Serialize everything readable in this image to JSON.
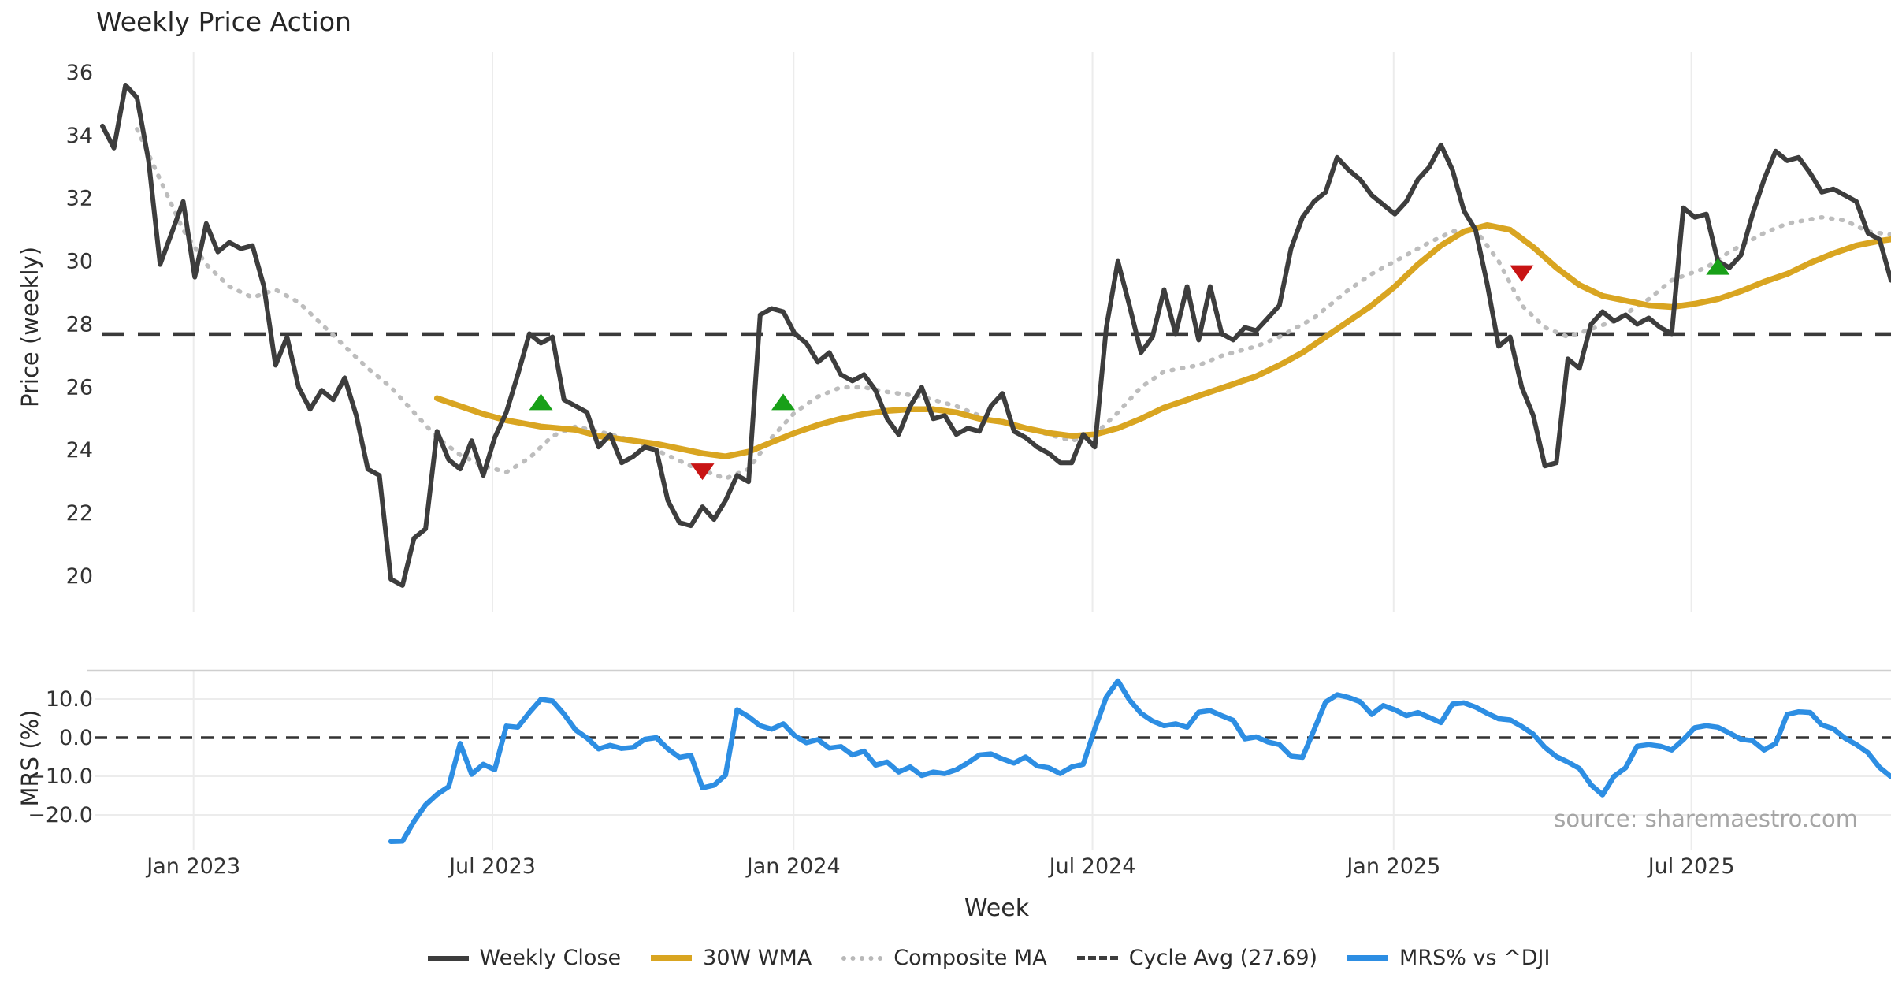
{
  "title": "Weekly Price Action",
  "source": "source: sharemaestro.com",
  "axes": {
    "price_label": "Price (weekly)",
    "mrs_label": "MRS (%)",
    "week_label": "Week",
    "price_ticks": [
      36,
      34,
      32,
      30,
      28,
      26,
      24,
      22,
      20
    ],
    "mrs_ticks": [
      {
        "label": "10.0",
        "value": 10
      },
      {
        "label": "0.0",
        "value": 0
      },
      {
        "label": "−10.0",
        "value": -10
      },
      {
        "label": "−20.0",
        "value": -20
      }
    ]
  },
  "legend": {
    "items": [
      {
        "label": "Weekly Close",
        "swatch": "sw-close",
        "name": "legend-weekly-close"
      },
      {
        "label": "30W WMA",
        "swatch": "sw-wma",
        "name": "legend-30w-wma"
      },
      {
        "label": "Composite MA",
        "swatch": "sw-dotted",
        "name": "legend-composite-ma"
      },
      {
        "label": "Cycle Avg (27.69)",
        "swatch": "sw-dashed",
        "name": "legend-cycle-avg"
      },
      {
        "label": "MRS% vs ^DJI",
        "swatch": "sw-mrs",
        "name": "legend-mrs"
      }
    ]
  },
  "colors": {
    "close": "#3d3d3d",
    "wma": "#d9a521",
    "composite": "#bdbdbd",
    "cycle": "#3a3a3a",
    "mrs": "#2d8ee3",
    "buy": "#18a018",
    "sell": "#c81414",
    "grid": "#ececec",
    "spine": "#cfcfcf",
    "tick_text": "#333333"
  },
  "chart_data": {
    "type": "line",
    "xlabel": "Week",
    "ylabel_top": "Price (weekly)",
    "ylabel_bottom": "MRS (%)",
    "ylim_top": [
      19.3,
      36.6
    ],
    "ylim_bottom": [
      -28,
      17.5
    ],
    "grid": true,
    "legend_position": "bottom",
    "x_ticks": [
      {
        "label": "Jan 2023",
        "week": 7.9
      },
      {
        "label": "Jul 2023",
        "week": 33.8
      },
      {
        "label": "Jan 2024",
        "week": 59.9
      },
      {
        "label": "Jul 2024",
        "week": 85.8
      },
      {
        "label": "Jan 2025",
        "week": 111.9
      },
      {
        "label": "Jul 2025",
        "week": 137.7
      }
    ],
    "cycle_avg": 27.69,
    "series": {
      "weekly_close": {
        "name": "Weekly Close",
        "start_week": 0,
        "values": [
          34.3,
          33.6,
          35.6,
          35.2,
          33.2,
          29.9,
          30.9,
          31.9,
          29.5,
          31.2,
          30.3,
          30.6,
          30.4,
          30.5,
          29.2,
          26.7,
          27.6,
          26.0,
          25.3,
          25.9,
          25.6,
          26.3,
          25.1,
          23.4,
          23.2,
          19.9,
          19.7,
          21.2,
          21.5,
          24.6,
          23.7,
          23.4,
          24.3,
          23.2,
          24.4,
          25.2,
          26.4,
          27.7,
          27.4,
          27.6,
          25.6,
          25.4,
          25.2,
          24.1,
          24.5,
          23.6,
          23.8,
          24.1,
          24.0,
          22.4,
          21.7,
          21.6,
          22.2,
          21.8,
          22.4,
          23.2,
          23.0,
          28.3,
          28.5,
          28.4,
          27.7,
          27.4,
          26.8,
          27.1,
          26.4,
          26.2,
          26.4,
          25.9,
          25.0,
          24.5,
          25.4,
          26.0,
          25.0,
          25.1,
          24.5,
          24.7,
          24.6,
          25.4,
          25.8,
          24.6,
          24.4,
          24.1,
          23.9,
          23.6,
          23.6,
          24.5,
          24.1,
          27.9,
          30.0,
          28.6,
          27.1,
          27.6,
          29.1,
          27.7,
          29.2,
          27.5,
          29.2,
          27.7,
          27.5,
          27.9,
          27.8,
          28.2,
          28.6,
          30.4,
          31.4,
          31.9,
          32.2,
          33.3,
          32.9,
          32.6,
          32.1,
          31.8,
          31.5,
          31.9,
          32.6,
          33.0,
          33.7,
          32.9,
          31.6,
          31.0,
          29.3,
          27.3,
          27.6,
          26.0,
          25.1,
          23.5,
          23.6,
          26.9,
          26.6,
          28.0,
          28.4,
          28.1,
          28.3,
          28.0,
          28.2,
          27.9,
          27.7,
          31.7,
          31.4,
          31.5,
          30.0,
          29.8,
          30.2,
          31.5,
          32.6,
          33.5,
          33.2,
          33.3,
          32.8,
          32.2,
          32.3,
          32.1,
          31.9,
          30.9,
          30.7,
          29.4
        ]
      },
      "wma_30w": {
        "name": "30W WMA",
        "points": [
          [
            29,
            25.65
          ],
          [
            31,
            25.4
          ],
          [
            33,
            25.15
          ],
          [
            35,
            24.95
          ],
          [
            38,
            24.75
          ],
          [
            41,
            24.65
          ],
          [
            43,
            24.45
          ],
          [
            46,
            24.3
          ],
          [
            48,
            24.2
          ],
          [
            50,
            24.05
          ],
          [
            52,
            23.9
          ],
          [
            54,
            23.8
          ],
          [
            56,
            23.95
          ],
          [
            58,
            24.25
          ],
          [
            60,
            24.55
          ],
          [
            62,
            24.8
          ],
          [
            64,
            25.0
          ],
          [
            66,
            25.15
          ],
          [
            68,
            25.25
          ],
          [
            70,
            25.3
          ],
          [
            72,
            25.3
          ],
          [
            74,
            25.2
          ],
          [
            76,
            25.0
          ],
          [
            78,
            24.9
          ],
          [
            80,
            24.7
          ],
          [
            82,
            24.55
          ],
          [
            84,
            24.45
          ],
          [
            86,
            24.5
          ],
          [
            88,
            24.7
          ],
          [
            90,
            25.0
          ],
          [
            92,
            25.35
          ],
          [
            94,
            25.6
          ],
          [
            96,
            25.85
          ],
          [
            98,
            26.1
          ],
          [
            100,
            26.35
          ],
          [
            102,
            26.7
          ],
          [
            104,
            27.1
          ],
          [
            106,
            27.6
          ],
          [
            108,
            28.1
          ],
          [
            110,
            28.6
          ],
          [
            112,
            29.2
          ],
          [
            114,
            29.9
          ],
          [
            116,
            30.5
          ],
          [
            118,
            30.95
          ],
          [
            120,
            31.15
          ],
          [
            122,
            31.0
          ],
          [
            124,
            30.45
          ],
          [
            126,
            29.8
          ],
          [
            128,
            29.25
          ],
          [
            130,
            28.9
          ],
          [
            132,
            28.75
          ],
          [
            134,
            28.6
          ],
          [
            136,
            28.55
          ],
          [
            138,
            28.65
          ],
          [
            140,
            28.8
          ],
          [
            142,
            29.05
          ],
          [
            144,
            29.35
          ],
          [
            146,
            29.6
          ],
          [
            148,
            29.95
          ],
          [
            150,
            30.25
          ],
          [
            152,
            30.5
          ],
          [
            154,
            30.65
          ],
          [
            155,
            30.7
          ]
        ]
      },
      "composite_ma": {
        "name": "Composite MA",
        "points": [
          [
            3,
            34.2
          ],
          [
            5,
            32.6
          ],
          [
            7,
            31.0
          ],
          [
            9,
            29.9
          ],
          [
            11,
            29.2
          ],
          [
            13,
            28.85
          ],
          [
            15,
            29.1
          ],
          [
            17,
            28.7
          ],
          [
            19,
            28.0
          ],
          [
            21,
            27.3
          ],
          [
            23,
            26.6
          ],
          [
            25,
            26.0
          ],
          [
            27,
            25.2
          ],
          [
            29,
            24.4
          ],
          [
            31,
            23.85
          ],
          [
            33,
            23.5
          ],
          [
            35,
            23.3
          ],
          [
            37,
            23.75
          ],
          [
            39,
            24.45
          ],
          [
            41,
            24.75
          ],
          [
            43,
            24.6
          ],
          [
            46,
            24.3
          ],
          [
            48,
            24.0
          ],
          [
            51,
            23.5
          ],
          [
            54,
            23.1
          ],
          [
            56,
            23.4
          ],
          [
            58,
            24.4
          ],
          [
            60,
            25.2
          ],
          [
            62,
            25.7
          ],
          [
            64,
            26.0
          ],
          [
            66,
            26.0
          ],
          [
            68,
            25.85
          ],
          [
            71,
            25.7
          ],
          [
            74,
            25.4
          ],
          [
            77,
            24.95
          ],
          [
            79,
            24.8
          ],
          [
            82,
            24.5
          ],
          [
            84,
            24.3
          ],
          [
            86,
            24.5
          ],
          [
            88,
            25.2
          ],
          [
            90,
            26.0
          ],
          [
            92,
            26.5
          ],
          [
            95,
            26.7
          ],
          [
            97,
            27.0
          ],
          [
            100,
            27.3
          ],
          [
            102,
            27.6
          ],
          [
            105,
            28.2
          ],
          [
            108,
            29.1
          ],
          [
            110,
            29.6
          ],
          [
            113,
            30.2
          ],
          [
            115,
            30.6
          ],
          [
            117,
            30.95
          ],
          [
            119,
            31.0
          ],
          [
            121,
            30.0
          ],
          [
            123,
            28.6
          ],
          [
            125,
            27.9
          ],
          [
            127,
            27.6
          ],
          [
            129,
            27.85
          ],
          [
            131,
            28.1
          ],
          [
            134,
            28.8
          ],
          [
            136,
            29.4
          ],
          [
            139,
            29.8
          ],
          [
            141,
            30.3
          ],
          [
            144,
            30.9
          ],
          [
            146,
            31.2
          ],
          [
            149,
            31.4
          ],
          [
            151,
            31.3
          ],
          [
            153,
            30.95
          ],
          [
            155,
            30.85
          ]
        ]
      },
      "mrs_pct": {
        "name": "MRS% vs ^DJI",
        "start_week": 25,
        "values": [
          -26.9,
          -26.8,
          -21.7,
          -17.4,
          -14.7,
          -12.7,
          -1.5,
          -9.5,
          -6.9,
          -8.3,
          3.0,
          2.7,
          6.5,
          9.9,
          9.5,
          6.1,
          2.0,
          -0.1,
          -2.9,
          -2.0,
          -2.8,
          -2.5,
          -0.4,
          0.0,
          -2.9,
          -5.1,
          -4.6,
          -13.0,
          -12.3,
          -9.7,
          7.2,
          5.4,
          3.1,
          2.2,
          3.6,
          0.5,
          -1.3,
          -0.5,
          -2.7,
          -2.3,
          -4.5,
          -3.5,
          -7.1,
          -6.3,
          -8.9,
          -7.6,
          -9.8,
          -8.9,
          -9.3,
          -8.3,
          -6.5,
          -4.5,
          -4.2,
          -5.5,
          -6.6,
          -5.0,
          -7.3,
          -7.8,
          -9.3,
          -7.6,
          -6.9,
          2.3,
          10.5,
          14.7,
          9.8,
          6.3,
          4.3,
          3.1,
          3.6,
          2.7,
          6.6,
          7.0,
          5.7,
          4.5,
          -0.3,
          0.2,
          -1.1,
          -1.8,
          -4.8,
          -5.1,
          2.0,
          9.2,
          11.1,
          10.4,
          9.3,
          6.0,
          8.3,
          7.2,
          5.7,
          6.5,
          5.2,
          3.9,
          8.7,
          9.0,
          7.9,
          6.3,
          4.9,
          4.6,
          2.9,
          0.9,
          -2.5,
          -4.9,
          -6.3,
          -8.0,
          -12.2,
          -14.8,
          -10.0,
          -7.8,
          -2.2,
          -1.8,
          -2.2,
          -3.2,
          -0.5,
          2.6,
          3.1,
          2.7,
          1.2,
          -0.4,
          -0.8,
          -3.2,
          -1.5,
          6.0,
          6.7,
          6.5,
          3.3,
          2.3,
          -0.1,
          -1.8,
          -3.9,
          -7.7,
          -10.1
        ]
      },
      "buy_signals": {
        "name": "buy",
        "points": [
          [
            38,
            25.5
          ],
          [
            59,
            25.5
          ],
          [
            140,
            29.8
          ]
        ]
      },
      "sell_signals": {
        "name": "sell",
        "points": [
          [
            52,
            23.35
          ],
          [
            123,
            29.65
          ]
        ]
      }
    }
  }
}
